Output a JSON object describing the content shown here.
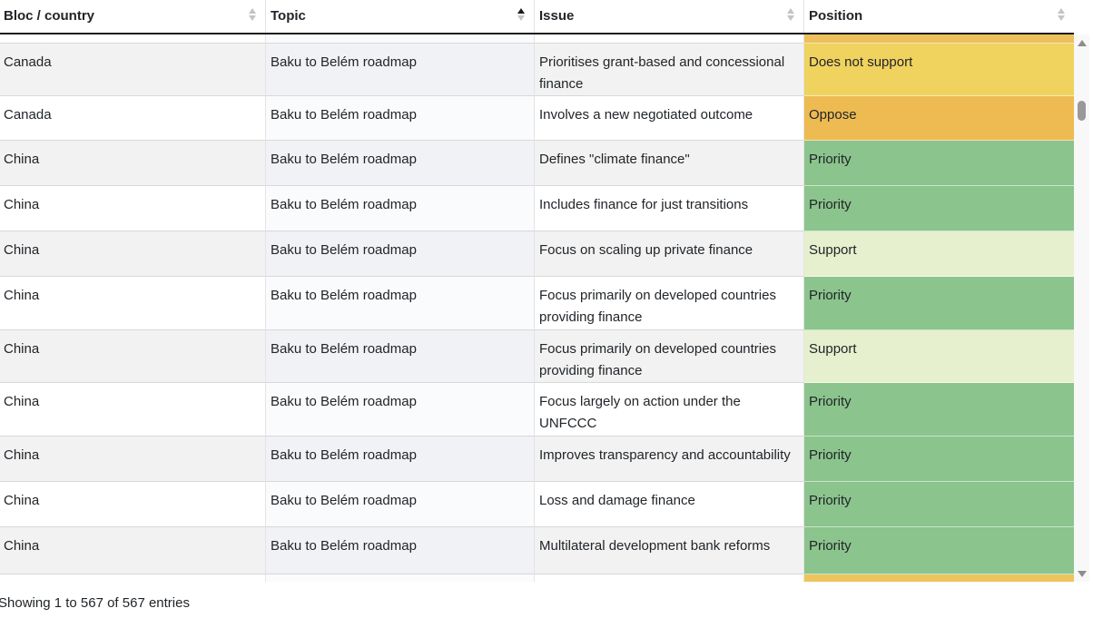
{
  "table": {
    "columns": [
      {
        "label": "Bloc / country",
        "sort": "none"
      },
      {
        "label": "Topic",
        "sort": "asc"
      },
      {
        "label": "Issue",
        "sort": "none"
      },
      {
        "label": "Position",
        "sort": "none"
      }
    ],
    "rows": [
      {
        "bloc": "Canada",
        "topic": "Baku to Belém roadmap",
        "issue": "Prioritises grant-based and concessional finance",
        "position": "Does not support",
        "position_key": "does_not_support"
      },
      {
        "bloc": "Canada",
        "topic": "Baku to Belém roadmap",
        "issue": "Involves a new negotiated outcome",
        "position": "Oppose",
        "position_key": "oppose"
      },
      {
        "bloc": "China",
        "topic": "Baku to Belém roadmap",
        "issue": "Defines \"climate finance\"",
        "position": "Priority",
        "position_key": "priority"
      },
      {
        "bloc": "China",
        "topic": "Baku to Belém roadmap",
        "issue": "Includes finance for just transitions",
        "position": "Priority",
        "position_key": "priority"
      },
      {
        "bloc": "China",
        "topic": "Baku to Belém roadmap",
        "issue": "Focus on scaling up private finance",
        "position": "Support",
        "position_key": "support"
      },
      {
        "bloc": "China",
        "topic": "Baku to Belém roadmap",
        "issue": "Focus primarily on developed countries providing finance",
        "position": "Priority",
        "position_key": "priority"
      },
      {
        "bloc": "China",
        "topic": "Baku to Belém roadmap",
        "issue": "Focus primarily on developed countries providing finance",
        "position": "Support",
        "position_key": "support"
      },
      {
        "bloc": "China",
        "topic": "Baku to Belém roadmap",
        "issue": "Focus largely on action under the UNFCCC",
        "position": "Priority",
        "position_key": "priority"
      },
      {
        "bloc": "China",
        "topic": "Baku to Belém roadmap",
        "issue": "Improves transparency and accountability",
        "position": "Priority",
        "position_key": "priority"
      },
      {
        "bloc": "China",
        "topic": "Baku to Belém roadmap",
        "issue": "Loss and damage finance",
        "position": "Priority",
        "position_key": "priority"
      },
      {
        "bloc": "China",
        "topic": "Baku to Belém roadmap",
        "issue": "Multilateral development bank reforms",
        "position": "Priority",
        "position_key": "priority"
      }
    ],
    "position_colors": {
      "does_not_support": "#f0d25f",
      "oppose": "#edbb52",
      "priority": "#8bc48c",
      "support": "#e6f0ce"
    },
    "partial_row_top_position_color": "#ecc05c",
    "partial_row_bottom_position_color": "#eec45c"
  },
  "footer": {
    "info": "Showing 1 to 567 of 567 entries"
  }
}
